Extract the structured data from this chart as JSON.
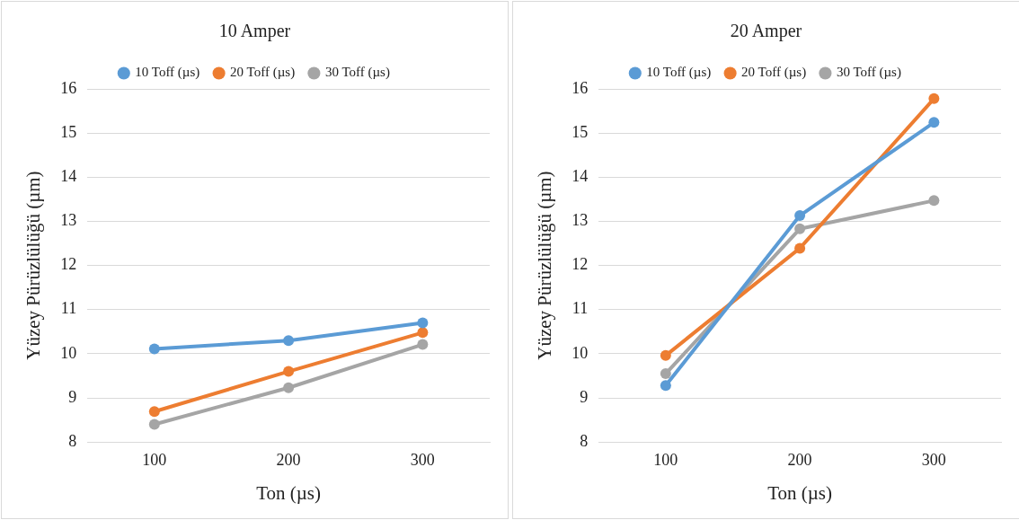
{
  "chart_data": [
    {
      "type": "line",
      "title": "10 Amper",
      "xlabel": "Ton (µs)",
      "ylabel": "Yüzey Pürüzlülüğü (µm)",
      "categories": [
        "100",
        "200",
        "300"
      ],
      "ylim": [
        8,
        16
      ],
      "yticks": [
        8,
        9,
        10,
        11,
        12,
        13,
        14,
        15,
        16
      ],
      "grid": "y",
      "legend": "top",
      "marker": "circle",
      "line_style": "solid",
      "series": [
        {
          "name": "10 Toff (µs)",
          "color": "#5b9bd5",
          "values": [
            10.11,
            10.3,
            10.7
          ]
        },
        {
          "name": "20 Toff (µs)",
          "color": "#ed7d31",
          "values": [
            8.69,
            9.6,
            10.48
          ]
        },
        {
          "name": "30 Toff (µs)",
          "color": "#a5a5a5",
          "values": [
            8.4,
            9.23,
            10.21
          ]
        }
      ]
    },
    {
      "type": "line",
      "title": "20 Amper",
      "xlabel": "Ton (µs)",
      "ylabel": "Yüzey Pürüzlülüğü (µm)",
      "categories": [
        "100",
        "200",
        "300"
      ],
      "ylim": [
        8,
        16
      ],
      "yticks": [
        8,
        9,
        10,
        11,
        12,
        13,
        14,
        15,
        16
      ],
      "grid": "y",
      "legend": "top",
      "marker": "circle",
      "line_style": "solid",
      "series": [
        {
          "name": "10 Toff (µs)",
          "color": "#5b9bd5",
          "values": [
            9.28,
            13.13,
            15.24
          ]
        },
        {
          "name": "20 Toff (µs)",
          "color": "#ed7d31",
          "values": [
            9.96,
            12.39,
            15.78
          ]
        },
        {
          "name": "30 Toff (µs)",
          "color": "#a5a5a5",
          "values": [
            9.55,
            12.83,
            13.47
          ]
        }
      ]
    }
  ]
}
